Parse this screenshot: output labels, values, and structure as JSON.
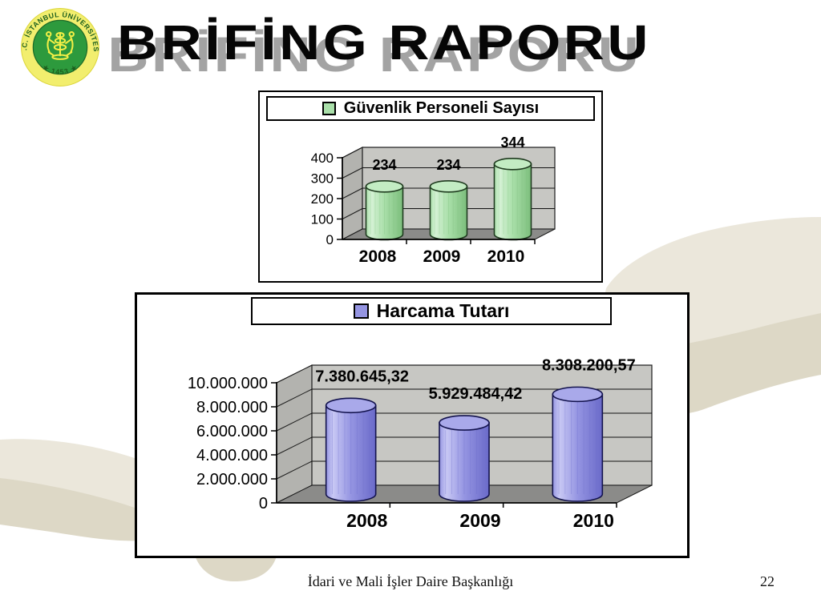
{
  "slide": {
    "title": "BRİFİNG RAPORU",
    "footer": {
      "department": "İdari ve Mali İşler Daire Başkanlığı",
      "page_number": "22"
    },
    "logo": {
      "ring_text": "T.C. İSTANBUL ÜNİVERSİTESİ",
      "founding_year": "1453",
      "star_icon": "★",
      "ring_color": "#f2ee6e",
      "disc_color": "#2d9a3d",
      "text_color": "#1d5f1d",
      "emblem_color": "#f3ef46"
    },
    "background_accent_light": "#ebe7db",
    "background_accent_dark": "#ddd8c6"
  },
  "chart_data": [
    {
      "type": "bar",
      "style": "3d-cylinder",
      "legend": "Güvenlik Personeli Sayısı",
      "legend_position": "top",
      "categories": [
        "2008",
        "2009",
        "2010"
      ],
      "values": [
        234,
        234,
        344
      ],
      "data_labels": [
        "234",
        "234",
        "344"
      ],
      "y_tick_labels": [
        "0",
        "100",
        "200",
        "300",
        "400"
      ],
      "ylim": [
        0,
        400
      ],
      "grid": true,
      "xlabel": "",
      "ylabel": "",
      "colors": {
        "bar": "#a9dfa9",
        "bar_light": "#d6f2d6",
        "bar_dark": "#7cbe7c",
        "bar_top": "#c3ecc3",
        "bar_edge": "#1f3b1f",
        "wall": "#c7c7c3",
        "side_wall": "#b3b3af",
        "floor": "#8b8b89",
        "legend_marker": "#a9dfa9"
      }
    },
    {
      "type": "bar",
      "style": "3d-cylinder",
      "legend": "Harcama Tutarı",
      "legend_position": "top",
      "categories": [
        "2008",
        "2009",
        "2010"
      ],
      "values": [
        7380645.32,
        5929484.42,
        8308200.57
      ],
      "data_labels": [
        "7.380.645,32",
        "5.929.484,42",
        "8.308.200,57"
      ],
      "y_tick_labels": [
        "0",
        "2.000.000",
        "4.000.000",
        "6.000.000",
        "8.000.000",
        "10.000.000"
      ],
      "ylim": [
        0,
        10000000
      ],
      "grid": true,
      "xlabel": "",
      "ylabel": "",
      "colors": {
        "bar": "#9595e2",
        "bar_light": "#c8c8f4",
        "bar_dark": "#6a6ac9",
        "bar_top": "#a9a9ea",
        "bar_edge": "#13134d",
        "wall": "#c7c7c3",
        "side_wall": "#b3b3af",
        "floor": "#8b8b89",
        "legend_marker": "#9595e2"
      }
    }
  ]
}
